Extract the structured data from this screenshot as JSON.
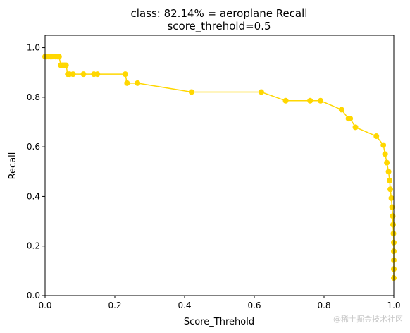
{
  "chart_data": {
    "type": "line",
    "title": "class: 82.14% = aeroplane Recall",
    "subtitle": "score_threhold=0.5",
    "xlabel": "Score_Threhold",
    "ylabel": "Recall",
    "xlim": [
      0,
      1
    ],
    "ylim": [
      0,
      1.05
    ],
    "xticks": [
      "0.0",
      "0.2",
      "0.4",
      "0.6",
      "0.8",
      "1.0"
    ],
    "yticks": [
      "0.0",
      "0.2",
      "0.4",
      "0.6",
      "0.8",
      "1.0"
    ],
    "grid": false,
    "line_color": "#FFD700",
    "series": [
      {
        "x": [
          0.0,
          0.005,
          0.01,
          0.015,
          0.02,
          0.025,
          0.03,
          0.035,
          0.04,
          0.045,
          0.05,
          0.055,
          0.06,
          0.065,
          0.07,
          0.08,
          0.11,
          0.14,
          0.15,
          0.23,
          0.235,
          0.265,
          0.42,
          0.62,
          0.69,
          0.76,
          0.79,
          0.85,
          0.87,
          0.875,
          0.89,
          0.95,
          0.97,
          0.975,
          0.98,
          0.985,
          0.988,
          0.99,
          0.993,
          0.995,
          0.997,
          0.998,
          0.999,
          1.0,
          1.0,
          1.0,
          1.0,
          1.0
        ],
        "y": [
          0.964,
          0.964,
          0.964,
          0.964,
          0.964,
          0.964,
          0.964,
          0.964,
          0.964,
          0.929,
          0.929,
          0.929,
          0.929,
          0.893,
          0.893,
          0.893,
          0.893,
          0.893,
          0.893,
          0.893,
          0.857,
          0.857,
          0.821,
          0.821,
          0.786,
          0.786,
          0.786,
          0.75,
          0.714,
          0.714,
          0.679,
          0.643,
          0.607,
          0.571,
          0.536,
          0.5,
          0.464,
          0.429,
          0.393,
          0.357,
          0.321,
          0.286,
          0.25,
          0.214,
          0.179,
          0.143,
          0.107,
          0.071
        ]
      }
    ]
  },
  "watermark": "@稀土掘金技术社区"
}
